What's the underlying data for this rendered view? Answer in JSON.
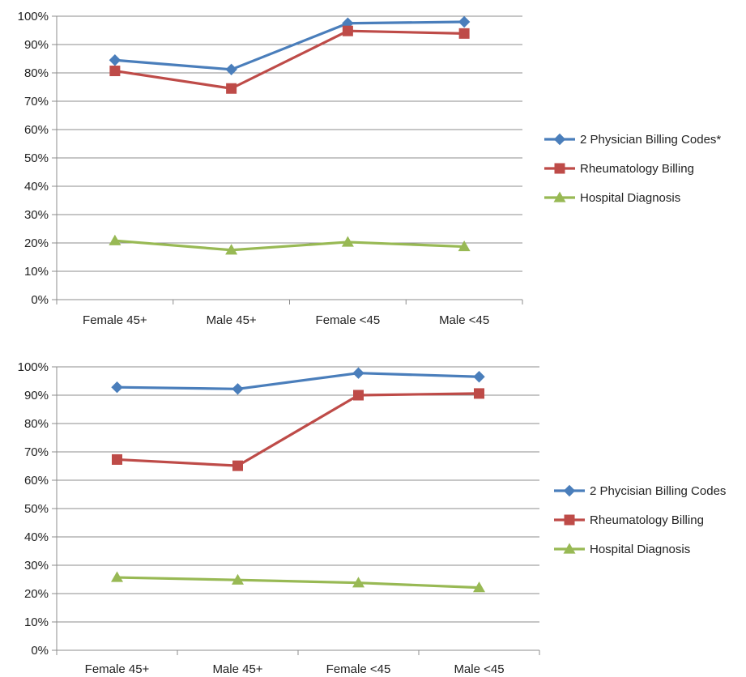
{
  "chart_data": [
    {
      "type": "line",
      "categories": [
        "Female 45+",
        "Male 45+",
        "Female <45",
        "Male <45"
      ],
      "ylim": [
        0,
        100
      ],
      "yticks": [
        "0%",
        "10%",
        "20%",
        "30%",
        "40%",
        "50%",
        "60%",
        "70%",
        "80%",
        "90%",
        "100%"
      ],
      "grid": true,
      "legend_position": "right",
      "series": [
        {
          "name": "2 Physician Billing Codes*",
          "color": "#4a7ebb",
          "marker": "diamond",
          "values": [
            84.5,
            81.2,
            97.5,
            98.0
          ]
        },
        {
          "name": "Rheumatology Billing",
          "color": "#be4b48",
          "marker": "square",
          "values": [
            80.7,
            74.5,
            94.8,
            93.9
          ]
        },
        {
          "name": "Hospital Diagnosis",
          "color": "#98b954",
          "marker": "triangle",
          "values": [
            20.8,
            17.5,
            20.3,
            18.7
          ]
        }
      ]
    },
    {
      "type": "line",
      "categories": [
        "Female 45+",
        "Male 45+",
        "Female <45",
        "Male <45"
      ],
      "ylim": [
        0,
        100
      ],
      "yticks": [
        "0%",
        "10%",
        "20%",
        "30%",
        "40%",
        "50%",
        "60%",
        "70%",
        "80%",
        "90%",
        "100%"
      ],
      "grid": true,
      "legend_position": "right",
      "series": [
        {
          "name": "2 Phycisian Billing Codes",
          "color": "#4a7ebb",
          "marker": "diamond",
          "values": [
            92.8,
            92.2,
            97.8,
            96.5
          ]
        },
        {
          "name": "Rheumatology Billing",
          "color": "#be4b48",
          "marker": "square",
          "values": [
            67.3,
            65.1,
            90.0,
            90.6
          ]
        },
        {
          "name": "Hospital Diagnosis",
          "color": "#98b954",
          "marker": "triangle",
          "values": [
            25.7,
            24.8,
            23.8,
            22.1
          ]
        }
      ]
    }
  ]
}
